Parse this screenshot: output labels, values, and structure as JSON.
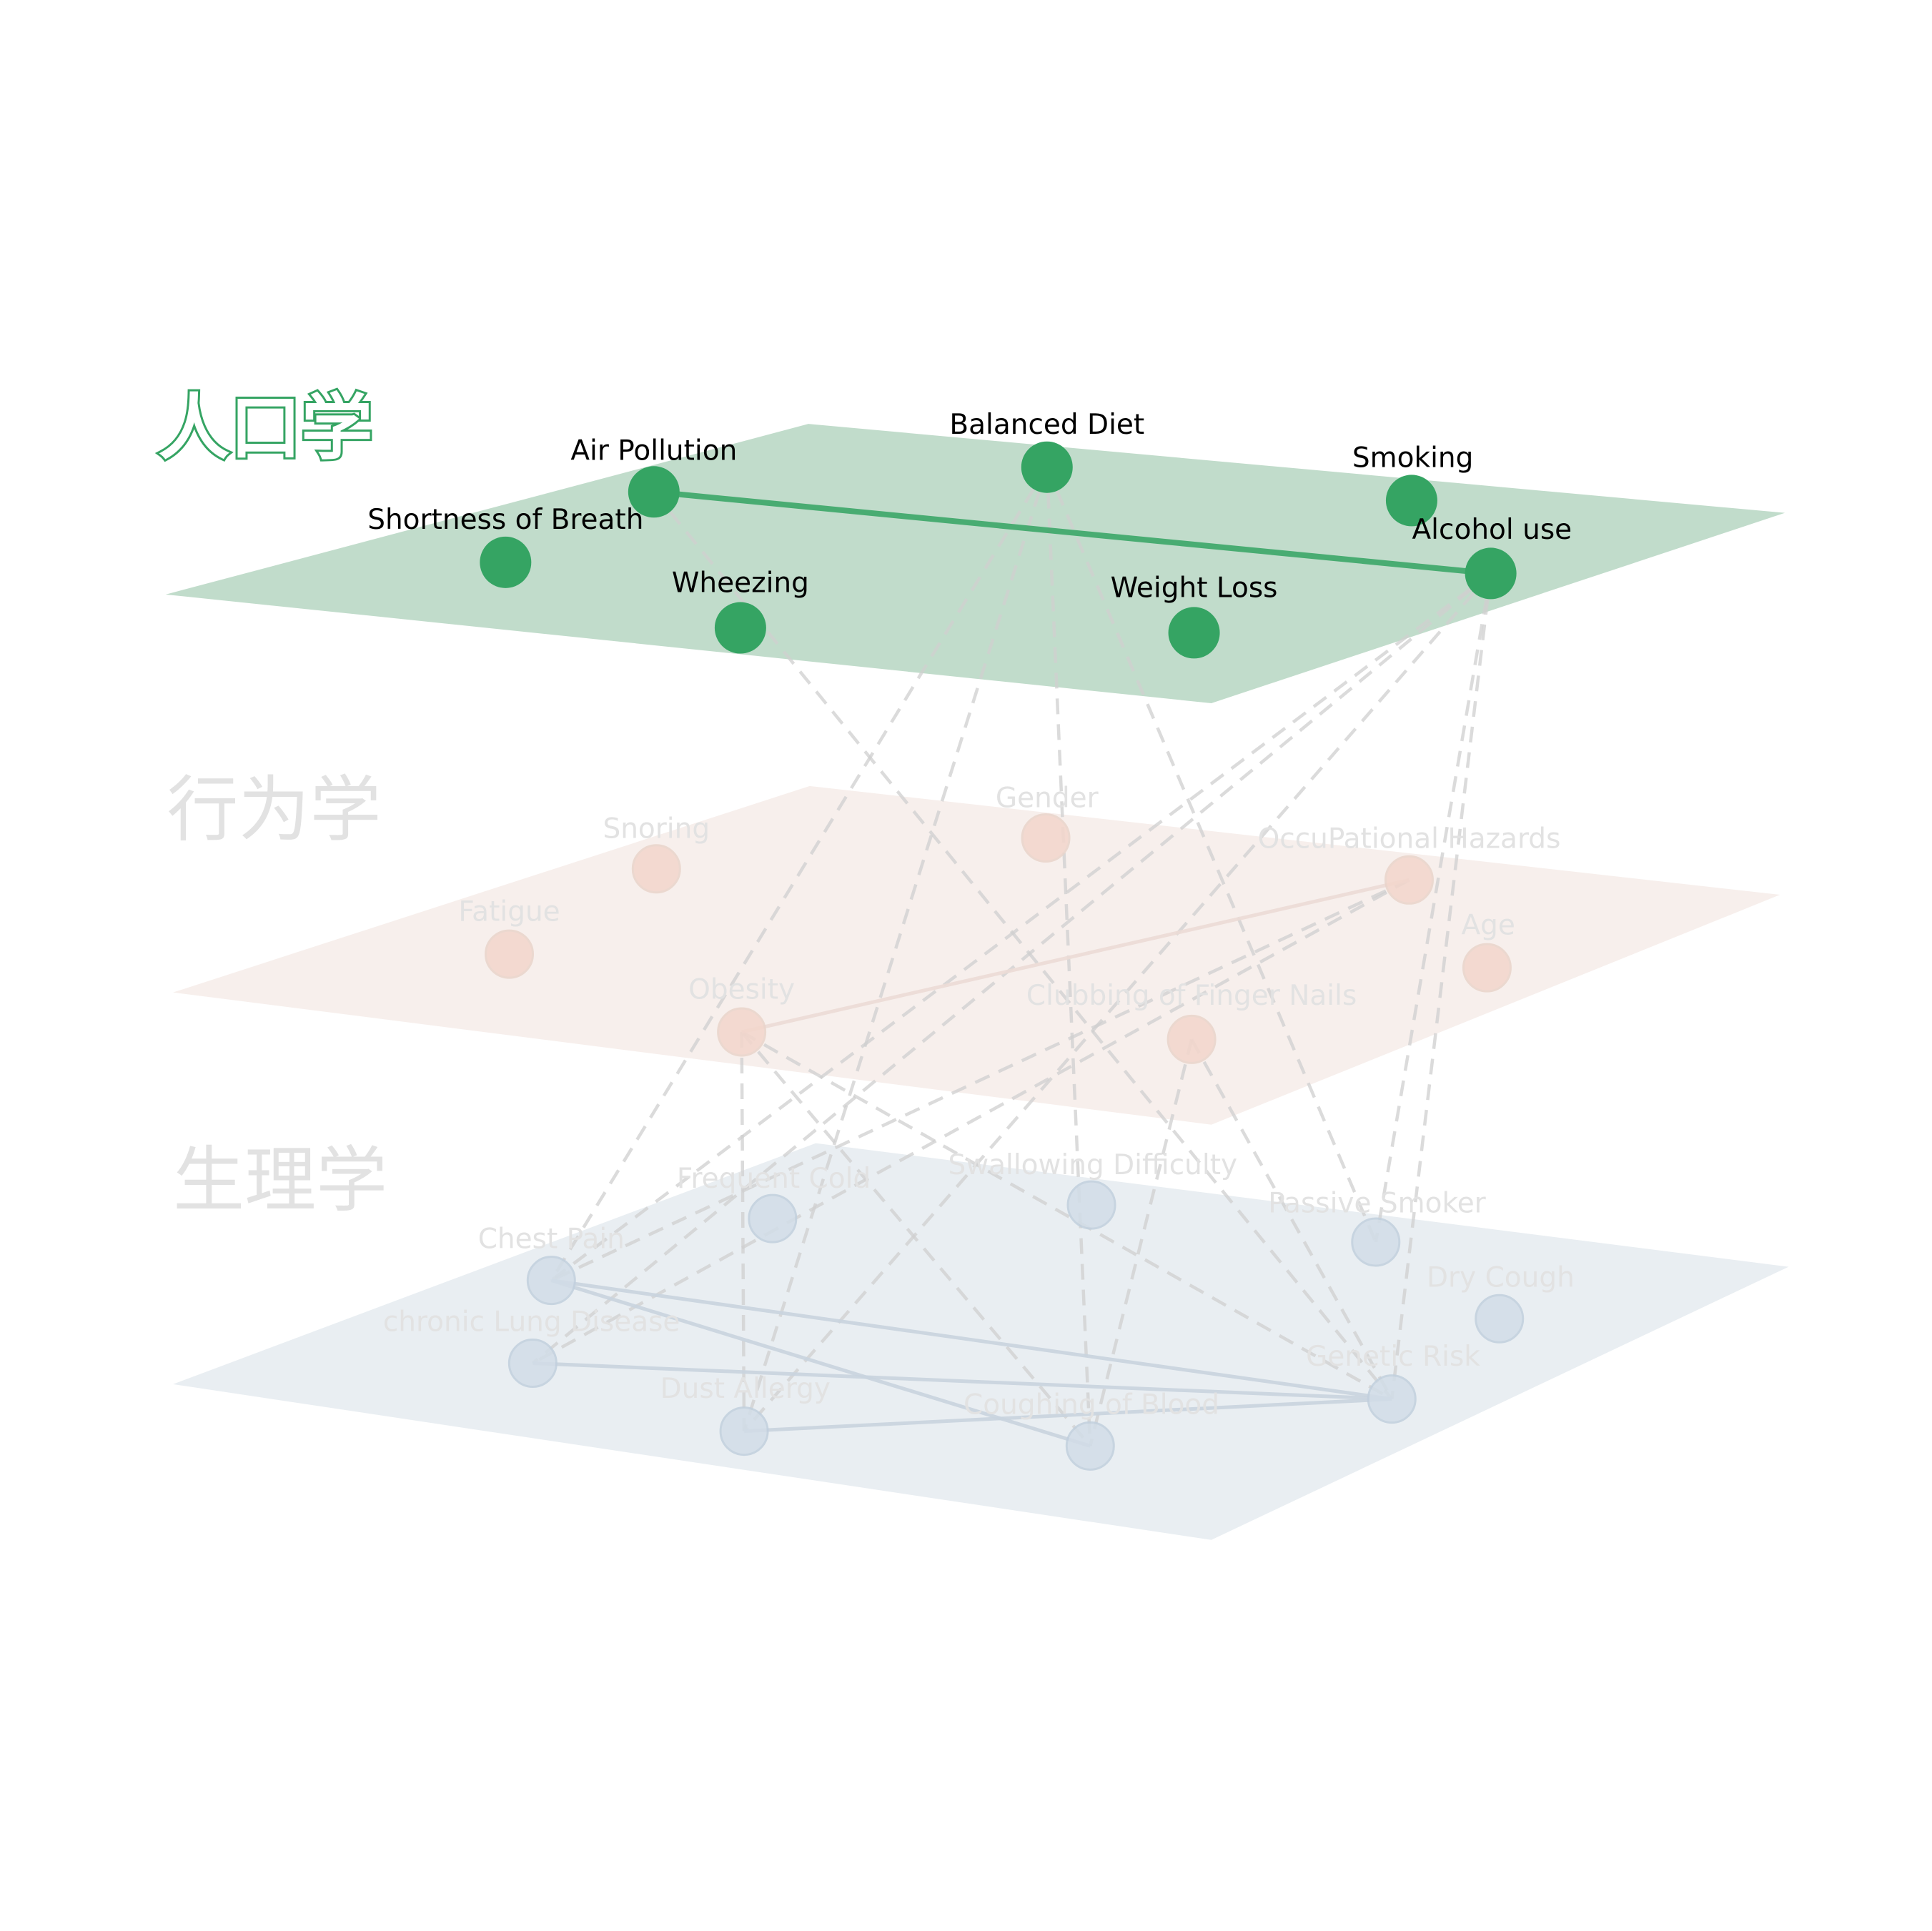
{
  "layers": [
    {
      "id": "demographics",
      "title": "人口学",
      "active": true,
      "plane_color": "#c1dccb",
      "node_color": "#35a463",
      "nodes": [
        {
          "id": "air-pollution",
          "label": "Air Pollution"
        },
        {
          "id": "balanced-diet",
          "label": "Balanced Diet"
        },
        {
          "id": "smoking",
          "label": "Smoking"
        },
        {
          "id": "shortness-of-breath",
          "label": "Shortness of Breath"
        },
        {
          "id": "alcohol-use",
          "label": "Alcohol use"
        },
        {
          "id": "wheezing",
          "label": "Wheezing"
        },
        {
          "id": "weight-loss",
          "label": "Weight Loss"
        }
      ],
      "edges": [
        [
          "air-pollution",
          "alcohol-use"
        ]
      ]
    },
    {
      "id": "behavior",
      "title": "行为学",
      "active": false,
      "plane_color": "#f7efec",
      "node_color": "#f3d6cc",
      "nodes": [
        {
          "id": "snoring",
          "label": "Snoring"
        },
        {
          "id": "gender",
          "label": "Gender"
        },
        {
          "id": "occupational-hazards",
          "label": "OccuPational Hazards"
        },
        {
          "id": "fatigue",
          "label": "Fatigue"
        },
        {
          "id": "age",
          "label": "Age"
        },
        {
          "id": "obesity",
          "label": "Obesity"
        },
        {
          "id": "clubbing",
          "label": "Clubbing of Finger Nails"
        }
      ],
      "edges": [
        [
          "obesity",
          "occupational-hazards"
        ]
      ]
    },
    {
      "id": "physiology",
      "title": "生理学",
      "active": false,
      "plane_color": "#e9eef2",
      "node_color": "#d2dde8",
      "nodes": [
        {
          "id": "frequent-cold",
          "label": "Frequent Cold"
        },
        {
          "id": "swallowing-difficulty",
          "label": "Swallowing Difficulty"
        },
        {
          "id": "passive-smoker",
          "label": "Passive Smoker"
        },
        {
          "id": "chest-pain",
          "label": "Chest Pain"
        },
        {
          "id": "dry-cough",
          "label": "Dry Cough"
        },
        {
          "id": "chronic-lung-disease",
          "label": "chronic Lung Disease"
        },
        {
          "id": "genetic-risk",
          "label": "Genetic Risk"
        },
        {
          "id": "dust-allergy",
          "label": "Dust Allergy"
        },
        {
          "id": "coughing-of-blood",
          "label": "Coughing of Blood"
        }
      ],
      "edges": [
        [
          "chest-pain",
          "genetic-risk"
        ],
        [
          "chest-pain",
          "coughing-of-blood"
        ],
        [
          "chronic-lung-disease",
          "genetic-risk"
        ],
        [
          "dust-allergy",
          "genetic-risk"
        ]
      ]
    }
  ],
  "interlayer_edges": [
    [
      "air-pollution",
      "genetic-risk"
    ],
    [
      "balanced-diet",
      "chest-pain"
    ],
    [
      "balanced-diet",
      "dust-allergy"
    ],
    [
      "balanced-diet",
      "coughing-of-blood"
    ],
    [
      "balanced-diet",
      "passive-smoker"
    ],
    [
      "alcohol-use",
      "chronic-lung-disease"
    ],
    [
      "alcohol-use",
      "dust-allergy"
    ],
    [
      "alcohol-use",
      "genetic-risk"
    ],
    [
      "alcohol-use",
      "passive-smoker"
    ],
    [
      "alcohol-use",
      "chest-pain"
    ],
    [
      "occupational-hazards",
      "chest-pain"
    ],
    [
      "occupational-hazards",
      "chronic-lung-disease"
    ],
    [
      "obesity",
      "dust-allergy"
    ],
    [
      "obesity",
      "coughing-of-blood"
    ],
    [
      "obesity",
      "genetic-risk"
    ],
    [
      "clubbing",
      "genetic-risk"
    ],
    [
      "clubbing",
      "coughing-of-blood"
    ]
  ],
  "colors": {
    "active_edge": "#35a463",
    "inactive_edge": "#c9d4df",
    "interlayer_edge": "#d0d0d0",
    "inactive_label": "#e2e2e2",
    "active_label": "#000000"
  }
}
